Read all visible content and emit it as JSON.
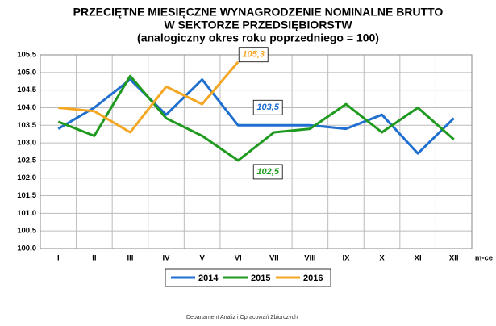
{
  "chart_data": {
    "type": "line",
    "title": [
      "PRZECIĘTNE MIESIĘCZNE WYNAGRODZENIE NOMINALNE BRUTTO",
      "W SEKTORZE PRZEDSIĘBIORSTW",
      "(analogiczny okres roku poprzedniego = 100)"
    ],
    "x_label": "m-ce",
    "categories": [
      "I",
      "II",
      "III",
      "IV",
      "V",
      "VI",
      "VII",
      "VIII",
      "IX",
      "X",
      "XI",
      "XII"
    ],
    "series": [
      {
        "name": "2014",
        "color": "#1f6fd1",
        "values": [
          103.4,
          104.0,
          104.8,
          103.8,
          104.8,
          103.5,
          103.5,
          103.5,
          103.4,
          103.8,
          102.7,
          103.7
        ],
        "value_labels": [
          null,
          null,
          null,
          null,
          null,
          "103,5",
          null,
          null,
          null,
          null,
          null,
          null
        ]
      },
      {
        "name": "2015",
        "color": "#1f9a1f",
        "values": [
          103.6,
          103.2,
          104.9,
          103.7,
          103.2,
          102.5,
          103.3,
          103.4,
          104.1,
          103.3,
          104.0,
          103.1
        ],
        "value_labels": [
          null,
          null,
          null,
          null,
          null,
          "102,5",
          null,
          null,
          null,
          null,
          null,
          null
        ]
      },
      {
        "name": "2016",
        "color": "#f5a623",
        "values": [
          104.0,
          103.9,
          103.3,
          104.6,
          104.1,
          105.3,
          null,
          null,
          null,
          null,
          null,
          null
        ],
        "value_labels": [
          null,
          null,
          null,
          null,
          null,
          "105,3",
          null,
          null,
          null,
          null,
          null,
          null
        ]
      }
    ],
    "ylim": [
      100.0,
      105.5
    ],
    "yticks": [
      {
        "value": 100.0,
        "label": "100,0"
      },
      {
        "value": 100.5,
        "label": "100,5"
      },
      {
        "value": 101.0,
        "label": "101,0"
      },
      {
        "value": 101.5,
        "label": "101,5"
      },
      {
        "value": 102.0,
        "label": "102,0"
      },
      {
        "value": 102.5,
        "label": "102,5"
      },
      {
        "value": 103.0,
        "label": "103,0"
      },
      {
        "value": 103.5,
        "label": "103,5"
      },
      {
        "value": 104.0,
        "label": "104,0"
      },
      {
        "value": 104.5,
        "label": "104,5"
      },
      {
        "value": 105.0,
        "label": "105,0"
      },
      {
        "value": 105.5,
        "label": "105,5"
      }
    ],
    "grid": true,
    "legend": "bottom",
    "footer": "Departament Analiz i Opracowań Zbiorczych"
  }
}
